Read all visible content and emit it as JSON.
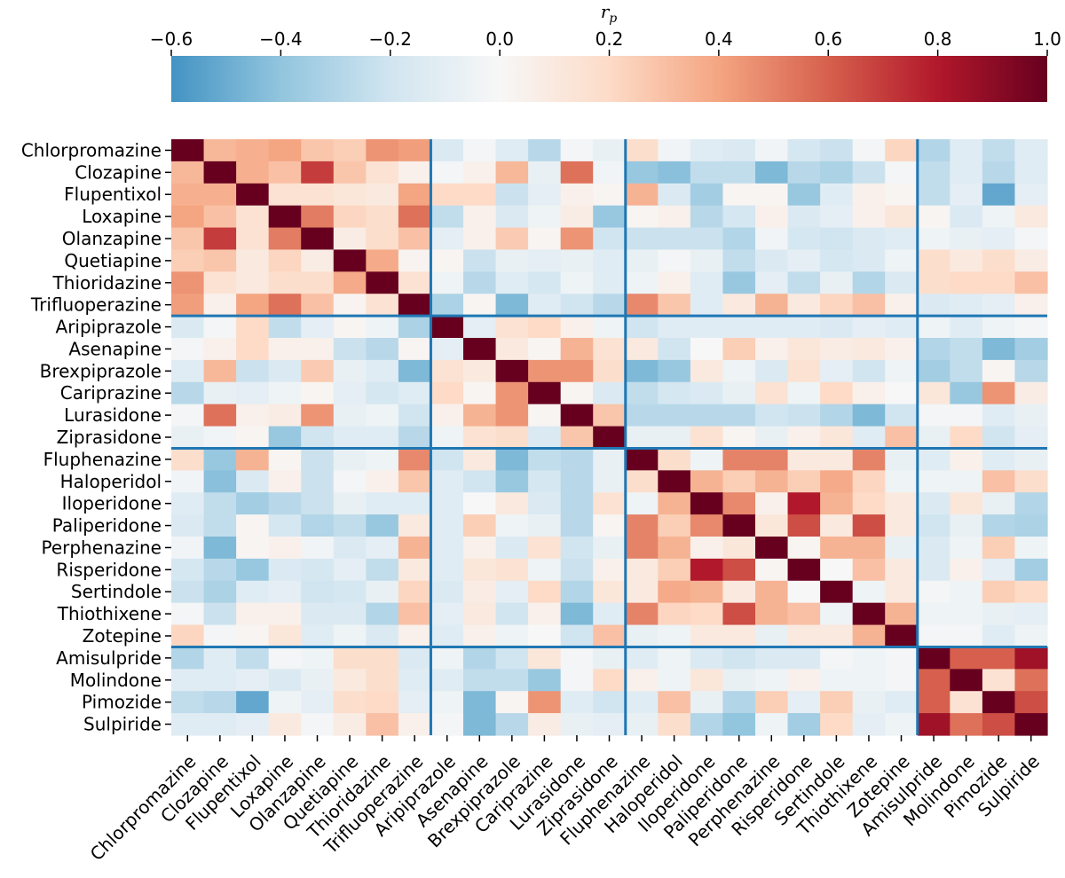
{
  "chart_data": {
    "type": "heatmap",
    "title": "",
    "colorbar": {
      "label": "r",
      "label_sub": "p",
      "range": [
        -0.6,
        1.0
      ],
      "ticks": [
        -0.6,
        -0.4,
        -0.2,
        0.0,
        0.2,
        0.4,
        0.6,
        0.8,
        1.0
      ],
      "tick_labels": [
        "−0.6",
        "−0.4",
        "−0.2",
        "0.0",
        "0.2",
        "0.4",
        "0.6",
        "0.8",
        "1.0"
      ]
    },
    "labels": [
      "Chlorpromazine",
      "Clozapine",
      "Flupentixol",
      "Loxapine",
      "Olanzapine",
      "Quetiapine",
      "Thioridazine",
      "Trifluoperazine",
      "Aripiprazole",
      "Asenapine",
      "Brexpiprazole",
      "Cariprazine",
      "Lurasidone",
      "Ziprasidone",
      "Fluphenazine",
      "Haloperidol",
      "Iloperidone",
      "Paliperidone",
      "Perphenazine",
      "Risperidone",
      "Sertindole",
      "Thiothixene",
      "Zotepine",
      "Amisulpride",
      "Molindone",
      "Pimozide",
      "Sulpiride"
    ],
    "group_boundaries": [
      8,
      14,
      23
    ],
    "matrix": [
      [
        1.0,
        0.33,
        0.36,
        0.4,
        0.28,
        0.25,
        0.45,
        0.42,
        -0.15,
        -0.02,
        -0.12,
        -0.28,
        -0.02,
        -0.08,
        0.18,
        -0.03,
        -0.12,
        -0.15,
        -0.03,
        -0.18,
        -0.22,
        -0.02,
        0.22,
        -0.3,
        -0.12,
        -0.25,
        -0.12
      ],
      [
        0.33,
        1.0,
        0.36,
        0.3,
        0.7,
        0.28,
        0.15,
        0.05,
        -0.02,
        0.05,
        0.33,
        -0.08,
        0.55,
        -0.03,
        -0.38,
        -0.42,
        -0.25,
        -0.25,
        -0.45,
        -0.28,
        -0.32,
        -0.22,
        -0.02,
        -0.25,
        -0.12,
        -0.28,
        -0.12
      ],
      [
        0.36,
        0.36,
        1.0,
        0.15,
        0.15,
        0.12,
        0.1,
        0.4,
        0.2,
        0.2,
        -0.22,
        -0.1,
        0.05,
        0.02,
        0.35,
        -0.15,
        -0.35,
        0.02,
        0.02,
        -0.38,
        -0.12,
        0.05,
        0.02,
        -0.25,
        -0.1,
        -0.52,
        -0.1
      ],
      [
        0.4,
        0.3,
        0.15,
        1.0,
        0.52,
        0.22,
        0.18,
        0.55,
        -0.25,
        0.05,
        -0.15,
        -0.05,
        0.08,
        -0.38,
        0.02,
        0.05,
        -0.28,
        -0.18,
        0.05,
        -0.15,
        -0.1,
        0.05,
        0.12,
        0.02,
        -0.15,
        -0.05,
        0.1
      ],
      [
        0.28,
        0.7,
        0.15,
        0.52,
        1.0,
        0.08,
        0.18,
        0.3,
        -0.1,
        0.05,
        0.26,
        0.02,
        0.45,
        -0.2,
        -0.22,
        -0.22,
        -0.22,
        -0.3,
        -0.03,
        -0.18,
        -0.2,
        -0.15,
        -0.12,
        -0.05,
        -0.08,
        -0.1,
        -0.02
      ],
      [
        0.25,
        0.28,
        0.1,
        0.22,
        0.08,
        1.0,
        0.38,
        0.03,
        0.02,
        -0.22,
        -0.08,
        -0.1,
        -0.08,
        -0.12,
        -0.08,
        -0.02,
        -0.08,
        -0.25,
        -0.15,
        -0.1,
        -0.18,
        -0.15,
        -0.05,
        0.18,
        0.1,
        0.18,
        0.08
      ],
      [
        0.45,
        0.15,
        0.1,
        0.18,
        0.18,
        0.38,
        1.0,
        0.15,
        -0.05,
        -0.28,
        -0.12,
        -0.18,
        -0.05,
        -0.12,
        -0.05,
        0.05,
        -0.12,
        -0.38,
        -0.1,
        -0.25,
        -0.08,
        -0.3,
        -0.15,
        0.18,
        0.2,
        0.2,
        0.3
      ],
      [
        0.42,
        0.05,
        0.4,
        0.55,
        0.3,
        0.03,
        0.15,
        1.0,
        -0.32,
        0.02,
        -0.45,
        -0.12,
        -0.2,
        -0.28,
        0.48,
        0.28,
        -0.12,
        0.1,
        0.35,
        0.1,
        0.22,
        0.3,
        0.05,
        -0.15,
        -0.12,
        -0.1,
        0.05
      ],
      [
        -0.15,
        -0.02,
        0.2,
        -0.25,
        -0.1,
        0.02,
        -0.05,
        -0.32,
        1.0,
        -0.1,
        0.15,
        0.2,
        0.05,
        -0.05,
        -0.2,
        -0.12,
        -0.12,
        -0.12,
        -0.12,
        -0.12,
        -0.15,
        -0.1,
        -0.12,
        -0.05,
        -0.12,
        -0.05,
        -0.02
      ],
      [
        -0.02,
        0.05,
        0.2,
        0.05,
        0.05,
        -0.22,
        -0.28,
        0.02,
        -0.1,
        1.0,
        0.1,
        0.02,
        0.35,
        0.15,
        0.1,
        -0.2,
        0.0,
        0.25,
        0.05,
        0.12,
        0.08,
        0.1,
        0.05,
        -0.3,
        -0.25,
        -0.45,
        -0.35
      ],
      [
        -0.12,
        0.33,
        -0.22,
        -0.15,
        0.26,
        -0.08,
        -0.12,
        -0.45,
        0.15,
        0.1,
        1.0,
        0.45,
        0.45,
        0.18,
        -0.45,
        -0.38,
        0.1,
        -0.05,
        -0.15,
        0.15,
        -0.1,
        -0.2,
        -0.05,
        -0.35,
        -0.25,
        0.02,
        -0.28
      ],
      [
        -0.28,
        -0.08,
        -0.1,
        -0.05,
        0.02,
        -0.1,
        -0.18,
        -0.12,
        0.2,
        0.02,
        0.45,
        1.0,
        0.02,
        -0.15,
        -0.25,
        -0.18,
        -0.15,
        -0.08,
        0.15,
        -0.05,
        0.2,
        0.05,
        0.0,
        0.12,
        -0.38,
        0.45,
        0.08
      ],
      [
        -0.02,
        0.55,
        0.05,
        0.08,
        0.45,
        -0.08,
        -0.05,
        -0.2,
        0.05,
        0.35,
        0.45,
        0.02,
        1.0,
        0.28,
        -0.28,
        -0.28,
        -0.28,
        -0.28,
        -0.2,
        -0.22,
        -0.3,
        -0.45,
        -0.2,
        -0.02,
        -0.02,
        -0.12,
        -0.08
      ],
      [
        -0.08,
        -0.03,
        0.02,
        -0.38,
        -0.2,
        -0.12,
        -0.12,
        -0.28,
        -0.05,
        0.15,
        0.18,
        -0.15,
        0.28,
        1.0,
        -0.08,
        -0.08,
        0.15,
        0.02,
        -0.08,
        0.05,
        0.12,
        -0.12,
        0.3,
        -0.08,
        0.2,
        -0.2,
        -0.1
      ],
      [
        0.18,
        -0.38,
        0.35,
        0.02,
        -0.22,
        -0.08,
        -0.05,
        0.48,
        -0.2,
        0.1,
        -0.45,
        -0.25,
        -0.28,
        -0.08,
        1.0,
        0.18,
        -0.05,
        0.5,
        0.5,
        0.1,
        0.1,
        0.5,
        -0.08,
        -0.12,
        0.05,
        -0.12,
        -0.08
      ],
      [
        -0.03,
        -0.42,
        -0.15,
        0.05,
        -0.22,
        -0.02,
        0.05,
        0.28,
        -0.12,
        -0.2,
        -0.38,
        -0.18,
        -0.28,
        -0.08,
        0.18,
        1.0,
        0.35,
        0.25,
        0.35,
        0.25,
        0.38,
        0.22,
        -0.05,
        -0.05,
        -0.05,
        0.3,
        0.18
      ],
      [
        -0.12,
        -0.25,
        -0.35,
        -0.28,
        -0.22,
        -0.08,
        -0.12,
        -0.12,
        -0.12,
        0.0,
        0.1,
        -0.15,
        -0.28,
        0.15,
        -0.05,
        0.35,
        1.0,
        0.48,
        0.05,
        0.8,
        0.35,
        0.2,
        0.1,
        -0.15,
        0.12,
        -0.08,
        -0.3
      ],
      [
        -0.15,
        -0.25,
        0.02,
        -0.18,
        -0.3,
        -0.25,
        -0.38,
        0.1,
        -0.12,
        0.25,
        -0.05,
        -0.08,
        -0.28,
        0.02,
        0.5,
        0.25,
        0.48,
        1.0,
        0.12,
        0.65,
        0.1,
        0.65,
        0.1,
        -0.2,
        -0.08,
        -0.3,
        -0.32
      ],
      [
        -0.03,
        -0.45,
        0.02,
        0.05,
        -0.03,
        -0.15,
        -0.1,
        0.35,
        -0.12,
        0.05,
        -0.15,
        0.15,
        -0.2,
        -0.08,
        0.5,
        0.35,
        0.05,
        0.12,
        1.0,
        0.02,
        0.35,
        0.35,
        -0.08,
        -0.15,
        -0.05,
        0.25,
        -0.05
      ],
      [
        -0.18,
        -0.28,
        -0.38,
        -0.15,
        -0.18,
        -0.1,
        -0.25,
        0.1,
        -0.12,
        0.12,
        0.15,
        -0.05,
        -0.22,
        0.05,
        0.1,
        0.25,
        0.8,
        0.65,
        0.02,
        1.0,
        0.0,
        0.3,
        0.1,
        -0.15,
        0.05,
        -0.1,
        -0.35
      ],
      [
        -0.22,
        -0.32,
        -0.12,
        -0.1,
        -0.2,
        -0.18,
        -0.08,
        0.22,
        -0.15,
        0.08,
        -0.1,
        0.2,
        -0.3,
        0.12,
        0.1,
        0.38,
        0.35,
        0.1,
        0.35,
        0.0,
        1.0,
        -0.05,
        0.1,
        -0.02,
        -0.05,
        0.25,
        0.2
      ],
      [
        -0.02,
        -0.22,
        0.05,
        0.05,
        -0.15,
        -0.15,
        -0.3,
        0.3,
        -0.1,
        0.1,
        -0.2,
        0.05,
        -0.45,
        -0.12,
        0.5,
        0.22,
        0.2,
        0.65,
        0.35,
        0.3,
        -0.05,
        1.0,
        0.35,
        -0.05,
        -0.05,
        -0.08,
        -0.1
      ],
      [
        0.22,
        -0.02,
        0.02,
        0.12,
        -0.12,
        -0.05,
        -0.15,
        0.05,
        -0.12,
        0.05,
        -0.05,
        0.0,
        -0.2,
        0.3,
        -0.08,
        -0.05,
        0.1,
        0.1,
        -0.08,
        0.1,
        0.1,
        0.35,
        1.0,
        -0.02,
        -0.02,
        -0.12,
        -0.05
      ],
      [
        -0.3,
        -0.12,
        -0.25,
        -0.02,
        -0.05,
        0.18,
        0.18,
        -0.15,
        -0.05,
        -0.3,
        -0.2,
        0.12,
        -0.02,
        -0.08,
        -0.12,
        -0.05,
        -0.15,
        -0.2,
        -0.15,
        -0.15,
        -0.02,
        -0.05,
        -0.02,
        1.0,
        0.6,
        0.6,
        0.85
      ],
      [
        -0.12,
        -0.12,
        -0.1,
        -0.15,
        -0.08,
        0.1,
        0.18,
        -0.12,
        -0.12,
        -0.25,
        -0.25,
        -0.38,
        -0.02,
        0.2,
        0.05,
        -0.05,
        0.12,
        -0.08,
        -0.05,
        0.05,
        -0.05,
        -0.05,
        -0.02,
        0.6,
        1.0,
        0.15,
        0.55
      ],
      [
        -0.25,
        -0.28,
        -0.52,
        -0.05,
        -0.1,
        0.18,
        0.2,
        -0.1,
        -0.05,
        -0.45,
        0.02,
        0.45,
        -0.12,
        -0.2,
        -0.12,
        0.3,
        -0.08,
        -0.3,
        0.25,
        -0.1,
        0.25,
        -0.08,
        -0.12,
        0.6,
        0.15,
        1.0,
        0.65
      ],
      [
        -0.12,
        -0.12,
        -0.1,
        0.1,
        -0.02,
        0.08,
        0.3,
        0.05,
        -0.02,
        -0.45,
        -0.28,
        0.08,
        -0.08,
        -0.1,
        -0.08,
        0.18,
        -0.3,
        -0.4,
        -0.05,
        -0.35,
        0.2,
        -0.1,
        -0.05,
        0.85,
        0.55,
        0.65,
        1.0
      ]
    ]
  }
}
